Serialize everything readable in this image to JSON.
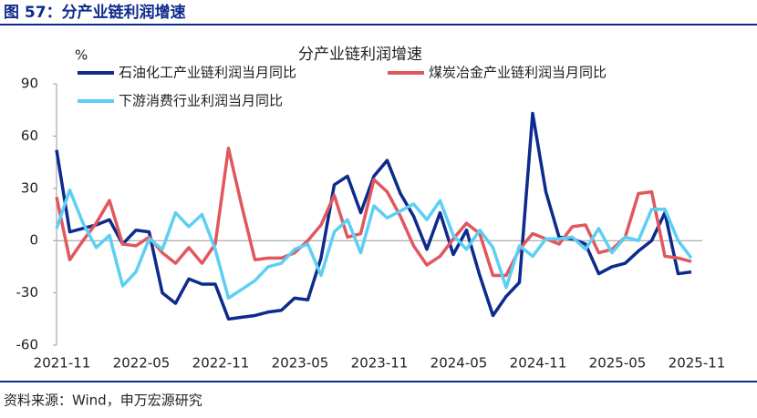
{
  "header": {
    "title": "图 57：分产业链利润增速"
  },
  "chart_data": {
    "type": "line",
    "title": "分产业链利润增速",
    "y_label": "%",
    "categories": [
      "2021-11",
      null,
      null,
      null,
      null,
      null,
      "2022-05",
      null,
      null,
      null,
      null,
      null,
      "2022-11",
      null,
      null,
      null,
      null,
      null,
      "2023-05",
      null,
      null,
      null,
      null,
      null,
      "2023-11",
      null,
      null,
      null,
      null,
      null,
      "2024-05",
      null,
      null,
      null,
      null,
      null,
      "2024-11",
      null,
      null,
      null,
      null,
      null,
      "2025-05",
      null,
      null,
      null,
      null,
      null,
      "2025-11"
    ],
    "series": [
      {
        "name": "石油化工产业链利润当月同比",
        "color": "#0d2b8c",
        "values": [
          52,
          5,
          7,
          9,
          12,
          -2,
          6,
          5,
          -30,
          -36,
          -22,
          -25,
          -25,
          -45,
          -44,
          -43,
          -41,
          -40,
          -33,
          -34,
          -10,
          32,
          37,
          16,
          37,
          46,
          27,
          14,
          -5,
          16,
          -8,
          6,
          -20,
          -43,
          -32,
          -24,
          73,
          28,
          2,
          1,
          -2,
          -19,
          -15,
          -13,
          -6,
          0,
          16,
          -19,
          -18
        ]
      },
      {
        "name": "煤炭冶金产业链利润当月同比",
        "color": "#e0585e",
        "values": [
          25,
          -11,
          0,
          10,
          23,
          -2,
          -3,
          2,
          -7,
          -13,
          -4,
          -13,
          -2,
          53,
          20,
          -11,
          -10,
          -10,
          -7,
          0,
          9,
          26,
          2,
          4,
          35,
          28,
          14,
          -3,
          -14,
          -9,
          1,
          10,
          4,
          -20,
          -20,
          -5,
          4,
          1,
          -2,
          8,
          9,
          -7,
          -5,
          2,
          27,
          28,
          -9,
          -10,
          -12
        ]
      },
      {
        "name": "下游消费行业利润当月同比",
        "color": "#5ccff3",
        "values": [
          7,
          29,
          10,
          -4,
          3,
          -26,
          -18,
          1,
          -5,
          16,
          8,
          15,
          -5,
          -33,
          -28,
          -23,
          -15,
          -13,
          -5,
          -2,
          -20,
          5,
          12,
          -7,
          20,
          13,
          17,
          21,
          12,
          23,
          3,
          -5,
          6,
          -4,
          -27,
          -3,
          -9,
          1,
          1,
          2,
          -5,
          7,
          -7,
          2,
          0,
          18,
          18,
          0,
          -10
        ]
      }
    ],
    "ylim": [
      -60,
      90
    ],
    "yticks": [
      -60,
      -30,
      0,
      30,
      60,
      90
    ]
  },
  "footer": {
    "source": "资料来源：Wind，申万宏源研究"
  }
}
